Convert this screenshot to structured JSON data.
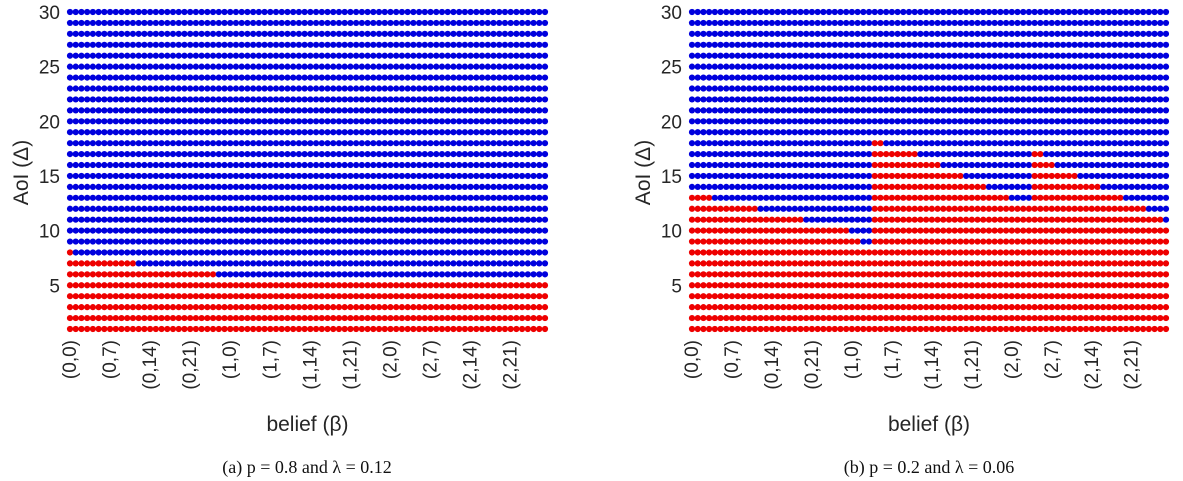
{
  "colors": {
    "act": "#ee0000",
    "wait": "#0000dd",
    "text": "#262626"
  },
  "chart_data": [
    {
      "type": "scatter",
      "xlabel": "belief (β)",
      "ylabel": "AoI (Δ)",
      "caption": "(a) p = 0.8 and λ = 0.12",
      "x_ticks": [
        "(0,0)",
        "(0,7)",
        "(0,14)",
        "(0,21)",
        "(1,0)",
        "(1,7)",
        "(1,14)",
        "(1,21)",
        "(2,0)",
        "(2,7)",
        "(2,14)",
        "(2,21)"
      ],
      "x_count": 84,
      "y_range": [
        1,
        30
      ],
      "y_ticks": [
        5,
        10,
        15,
        20,
        25,
        30
      ],
      "threshold_rule": "points with AoI <= threshold[i] are red, above are blue",
      "thresholds": [
        8,
        7,
        7,
        7,
        7,
        7,
        7,
        7,
        7,
        7,
        7,
        7,
        6,
        6,
        6,
        6,
        6,
        6,
        6,
        6,
        6,
        6,
        6,
        6,
        6,
        6,
        5,
        5,
        5,
        5,
        5,
        5,
        5,
        5,
        5,
        5,
        5,
        5,
        5,
        5,
        5,
        5,
        5,
        5,
        5,
        5,
        5,
        5,
        5,
        5,
        5,
        5,
        5,
        5,
        5,
        5,
        5,
        5,
        5,
        5,
        5,
        5,
        5,
        5,
        5,
        5,
        5,
        5,
        5,
        5,
        5,
        5,
        5,
        5,
        5,
        5,
        5,
        5,
        5,
        5,
        5,
        5,
        5,
        5
      ]
    },
    {
      "type": "scatter",
      "xlabel": "belief (β)",
      "ylabel": "AoI (Δ)",
      "caption": "(b) p = 0.2 and λ = 0.06",
      "x_ticks": [
        "(0,0)",
        "(0,7)",
        "(0,14)",
        "(0,21)",
        "(1,0)",
        "(1,7)",
        "(1,14)",
        "(1,21)",
        "(2,0)",
        "(2,7)",
        "(2,14)",
        "(2,21)"
      ],
      "x_count": 84,
      "y_range": [
        1,
        30
      ],
      "y_ticks": [
        5,
        10,
        15,
        20,
        25,
        30
      ],
      "threshold_rule": "points with AoI <= threshold[i] are red, above are blue",
      "thresholds": [
        13,
        13,
        13,
        13,
        12,
        12,
        12,
        12,
        12,
        12,
        12,
        12,
        11,
        11,
        11,
        11,
        11,
        11,
        11,
        11,
        10,
        10,
        10,
        10,
        10,
        10,
        10,
        10,
        9,
        9,
        8,
        8,
        18,
        18,
        17,
        17,
        17,
        17,
        17,
        17,
        16,
        16,
        16,
        16,
        15,
        15,
        15,
        15,
        14,
        14,
        14,
        14,
        13,
        13,
        13,
        13,
        12,
        12,
        12,
        12,
        17,
        17,
        16,
        16,
        15,
        15,
        15,
        15,
        14,
        14,
        14,
        14,
        13,
        13,
        13,
        13,
        12,
        12,
        12,
        12,
        11,
        11,
        11,
        10
      ]
    }
  ]
}
